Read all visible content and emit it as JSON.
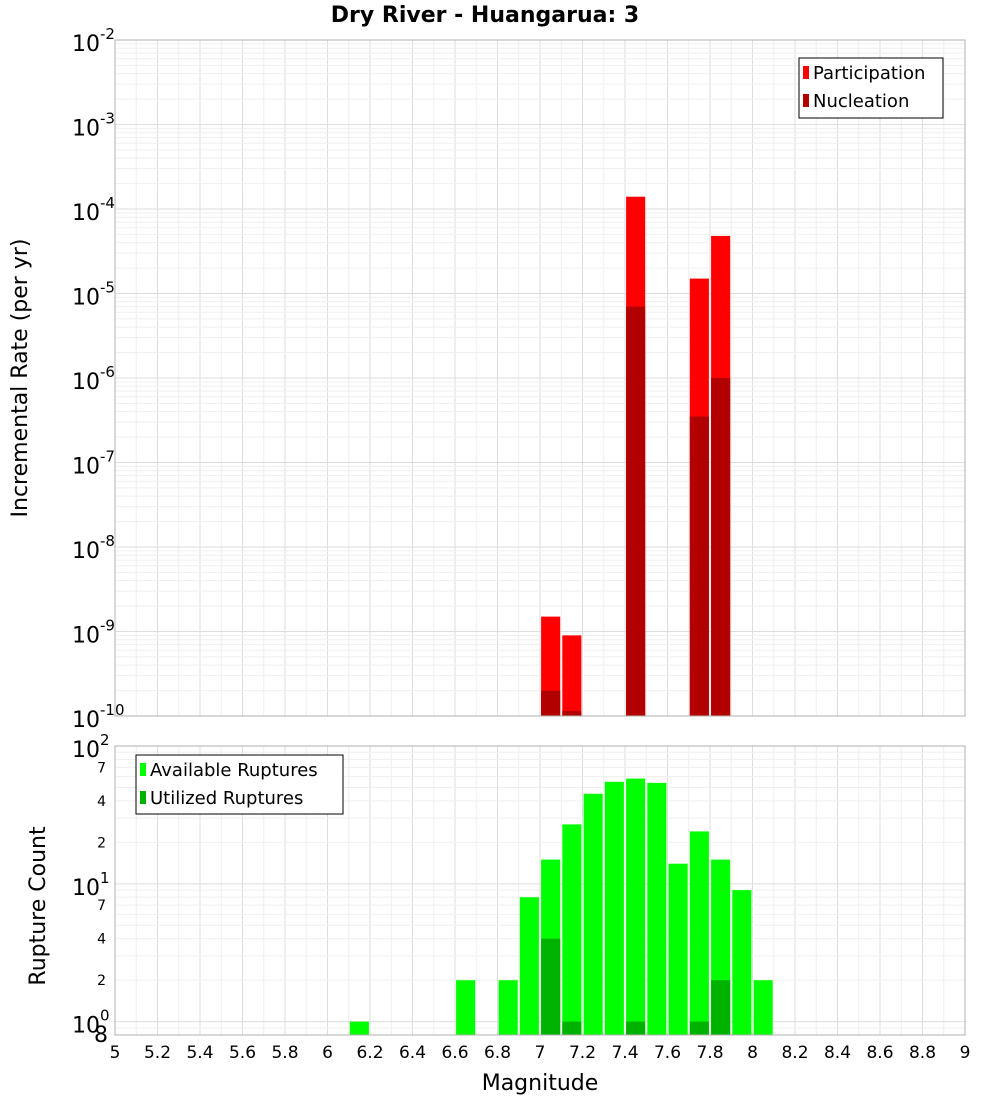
{
  "chart_data": [
    {
      "type": "bar",
      "panel": "top",
      "title": "Dry River - Huangarua: 3",
      "ylabel": "Incremental Rate (per yr)",
      "yscale": "log",
      "ylim": [
        1e-10,
        0.01
      ],
      "y_ticks": [
        "-10",
        "-9",
        "-8",
        "-7",
        "-6",
        "-5",
        "-4",
        "-3",
        "-2"
      ],
      "y_tick_base": "10",
      "bar_width": 0.09,
      "series": [
        {
          "name": "Participation",
          "color": "#ff0000",
          "x": [
            7.05,
            7.15,
            7.45,
            7.75,
            7.85
          ],
          "values": [
            1.5e-09,
            9e-10,
            0.00014,
            1.5e-05,
            4.8e-05
          ]
        },
        {
          "name": "Nucleation",
          "color": "#b20000",
          "x": [
            7.05,
            7.15,
            7.45,
            7.75,
            7.85
          ],
          "values": [
            2e-10,
            1.15e-10,
            7e-06,
            3.5e-07,
            1e-06
          ]
        }
      ],
      "legend": {
        "position": "top-right",
        "entries": [
          "Participation",
          "Nucleation"
        ]
      }
    },
    {
      "type": "bar",
      "panel": "bottom",
      "xlabel": "Magnitude",
      "ylabel": "Rupture Count",
      "yscale": "log",
      "ylim": [
        0.8,
        100
      ],
      "xlim": [
        5,
        9
      ],
      "x_ticks": [
        "5",
        "5.2",
        "5.4",
        "5.6",
        "5.8",
        "6",
        "6.2",
        "6.4",
        "6.6",
        "6.8",
        "7",
        "7.2",
        "7.4",
        "7.6",
        "7.8",
        "8",
        "8.2",
        "8.4",
        "8.6",
        "8.8",
        "9"
      ],
      "y_major_ticks": [
        {
          "base": "10",
          "exp": "0",
          "value": 1
        },
        {
          "base": "10",
          "exp": "1",
          "value": 10
        },
        {
          "base": "10",
          "exp": "2",
          "value": 100
        }
      ],
      "y_minor_ticks": [
        "2",
        "4",
        "7",
        "2",
        "4",
        "7"
      ],
      "y_bottom_tick": "8",
      "bar_width": 0.09,
      "series": [
        {
          "name": "Available Ruptures",
          "color": "#00ff00",
          "x": [
            6.15,
            6.65,
            6.85,
            6.95,
            7.05,
            7.15,
            7.25,
            7.35,
            7.45,
            7.55,
            7.65,
            7.75,
            7.85,
            7.95,
            8.05
          ],
          "values": [
            1,
            2,
            2,
            8,
            15,
            27,
            45,
            55,
            58,
            54,
            14,
            24,
            15,
            9,
            2
          ]
        },
        {
          "name": "Utilized Ruptures",
          "color": "#00b200",
          "x": [
            7.05,
            7.15,
            7.45,
            7.75,
            7.85
          ],
          "values": [
            4,
            1,
            1,
            1,
            2
          ]
        }
      ],
      "legend": {
        "position": "top-left",
        "entries": [
          "Available Ruptures",
          "Utilized Ruptures"
        ]
      }
    }
  ]
}
